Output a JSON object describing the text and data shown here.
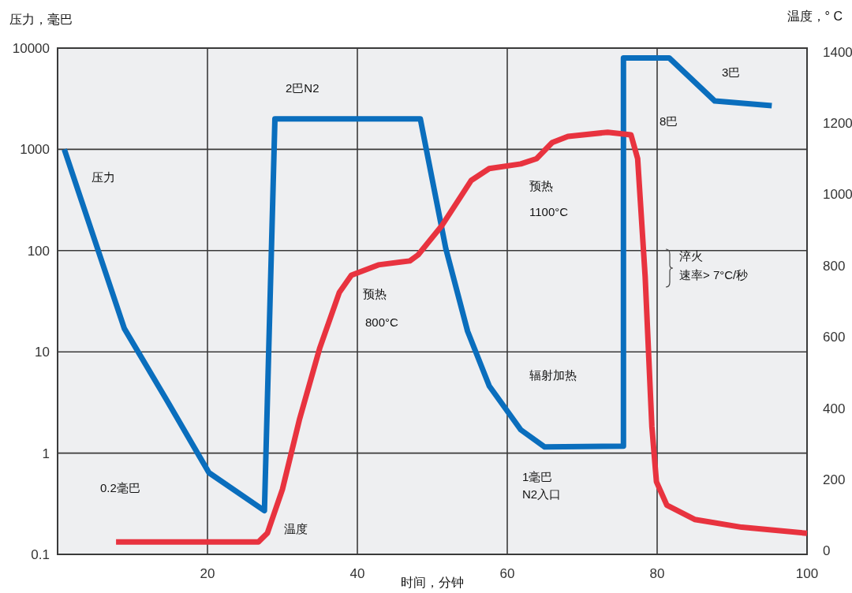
{
  "chart_data": {
    "type": "line",
    "xlabel": "时间，分钟",
    "ylabel": "压力，毫巴",
    "y2label": "温度，° C",
    "xlim": [
      0,
      100
    ],
    "ylim": [
      0.1,
      10000
    ],
    "y2lim": [
      -10,
      1410
    ],
    "log": "y",
    "grid": true,
    "xticks": [
      20,
      40,
      60,
      80,
      100
    ],
    "yticks": [
      0.1,
      1,
      10,
      100,
      1000,
      10000
    ],
    "y2ticks": [
      0,
      200,
      400,
      600,
      800,
      1000,
      1200,
      1400
    ],
    "series": [
      {
        "color": "#0a6ebd",
        "x": [
          0.9,
          8.9,
          14.4,
          20.2,
          27.6,
          29.0,
          48.4,
          51.8,
          54.7,
          57.6,
          61.8,
          65,
          75.5,
          75.5,
          81.6,
          87.7,
          95.3
        ],
        "values": [
          1000,
          17,
          3.5,
          0.64,
          0.27,
          2000,
          2000,
          105,
          16,
          4.6,
          1.7,
          1.15,
          1.17,
          8000,
          8000,
          3000,
          2700
        ]
      },
      {
        "color": "#e8333f",
        "axis": "y2",
        "x": [
          7.8,
          26.8,
          28,
          30,
          32.3,
          35,
          37.6,
          39.2,
          42.8,
          47,
          48.1,
          51.3,
          55.2,
          57.6,
          61.8,
          63.9,
          66,
          68.1,
          73.4,
          76.5,
          77.4,
          78.4,
          79.3,
          79.9,
          81.3,
          85,
          91.3,
          100
        ],
        "values": [
          25,
          25,
          50,
          172,
          370,
          570,
          725,
          773,
          802,
          813,
          830,
          913,
          1039,
          1072,
          1085,
          1100,
          1145,
          1162,
          1174,
          1167,
          1100,
          769,
          349,
          194,
          128,
          88,
          66,
          49
        ]
      }
    ],
    "annotations": [
      "压力",
      "2巴N2",
      "0.2毫巴",
      "温度",
      "预热",
      "800°C",
      "预热",
      "1100°C",
      "辐射加热",
      "1毫巴",
      "N2入口",
      "8巴",
      "3巴",
      "淬火",
      "速率> 7°C/秒"
    ]
  }
}
